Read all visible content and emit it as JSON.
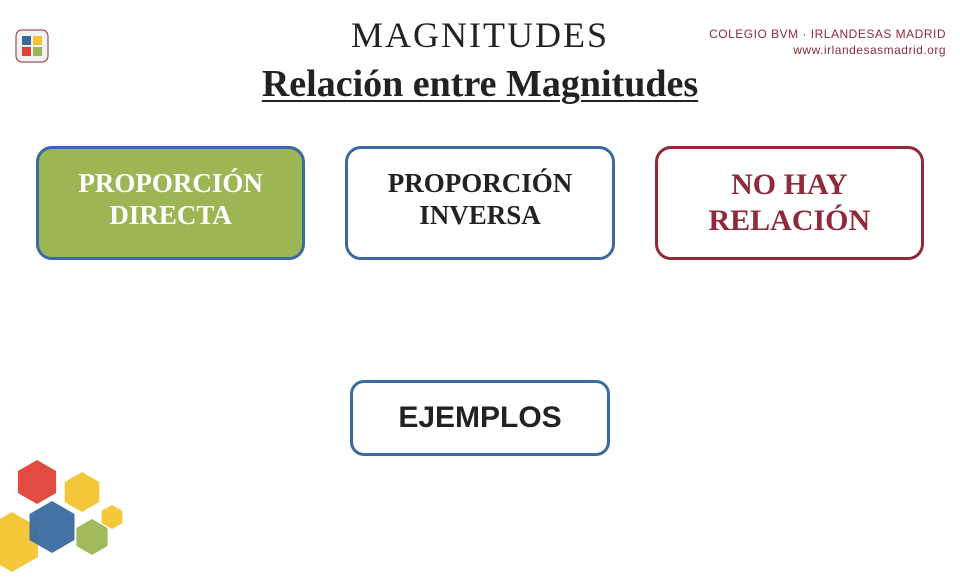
{
  "header": {
    "school_line1": "COLEGIO BVM · IRLANDESAS MADRID",
    "school_line2": "www.irlandesasmadrid.org",
    "text_color": "#8f2a3a"
  },
  "titles": {
    "main": "MAGNITUDES",
    "sub": "Relación entre Magnitudes",
    "main_fontsize": 36,
    "sub_fontsize": 38
  },
  "cards": {
    "directa": {
      "line1": "PROPORCIÓN",
      "line2": "DIRECTA",
      "bg": "#9db655",
      "text": "#ffffff",
      "border": "#3b6aa0"
    },
    "inversa": {
      "line1": "PROPORCIÓN",
      "line2": "INVERSA",
      "bg": "#ffffff",
      "text": "#222222",
      "border": "#3b6aa0"
    },
    "norelacion": {
      "line1": "NO HAY",
      "line2": "RELACIÓN",
      "bg": "#ffffff",
      "text": "#8f2a3a",
      "border": "#8f2a3a"
    }
  },
  "ejemplos": {
    "label": "EJEMPLOS",
    "bg": "#ffffff",
    "text": "#222222",
    "border": "#3b6aa0"
  },
  "decor": {
    "hex_colors": [
      "#f4c430",
      "#3b6aa0",
      "#e04038",
      "#f4c430",
      "#9db655",
      "#f4c430"
    ]
  }
}
